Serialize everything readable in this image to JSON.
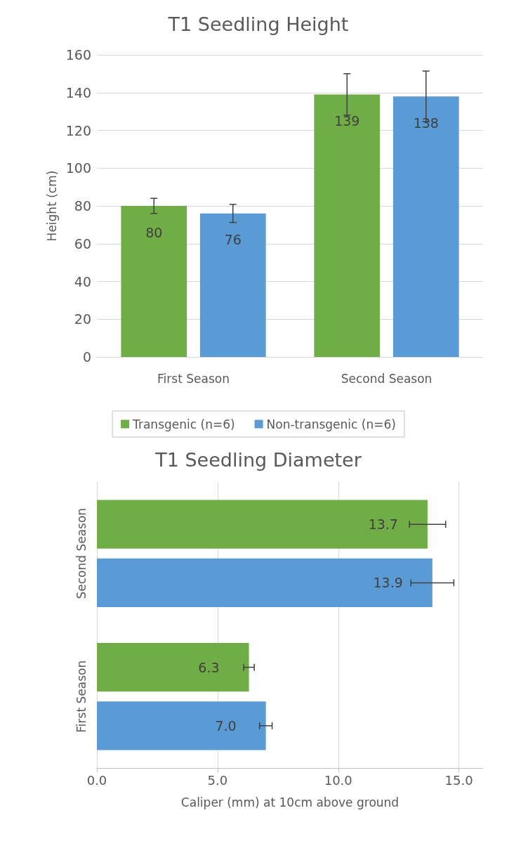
{
  "chart_data": [
    {
      "type": "bar",
      "title": "T1 Seedling Height",
      "ylabel": "Height (cm)",
      "categories": [
        "First Season",
        "Second Season"
      ],
      "series": [
        {
          "name": "Transgenic (n=6)",
          "color": "#70ad47",
          "values": [
            80,
            139
          ],
          "errors": [
            4,
            11
          ]
        },
        {
          "name": "Non-transgenic (n=6)",
          "color": "#5b9bd5",
          "values": [
            76,
            138
          ],
          "errors": [
            4.8,
            13.4
          ]
        }
      ],
      "ylim": [
        0,
        160
      ],
      "yticks": [
        0,
        20,
        40,
        60,
        80,
        100,
        120,
        140,
        160
      ],
      "grid": "y",
      "legend": "bottom",
      "data_labels": true
    },
    {
      "type": "bar",
      "orientation": "horizontal",
      "title": "T1 Seedling Diameter",
      "xlabel": "Caliper (mm) at 10cm above ground",
      "categories": [
        "Second Season",
        "First Season"
      ],
      "series": [
        {
          "color": "#70ad47",
          "values": [
            13.7,
            6.3
          ],
          "errors": [
            0.75,
            0.22
          ],
          "value_labels": [
            "13.7",
            "6.3"
          ]
        },
        {
          "color": "#5b9bd5",
          "values": [
            13.9,
            7.0
          ],
          "errors": [
            0.89,
            0.26
          ],
          "value_labels": [
            "13.9",
            "7.0"
          ]
        }
      ],
      "xlim": [
        0,
        16
      ],
      "xticks": [
        {
          "value": 0,
          "label": "0.0"
        },
        {
          "value": 5,
          "label": "5.0"
        },
        {
          "value": 10,
          "label": "10.0"
        },
        {
          "value": 15,
          "label": "15.0"
        }
      ],
      "grid": "x"
    }
  ]
}
